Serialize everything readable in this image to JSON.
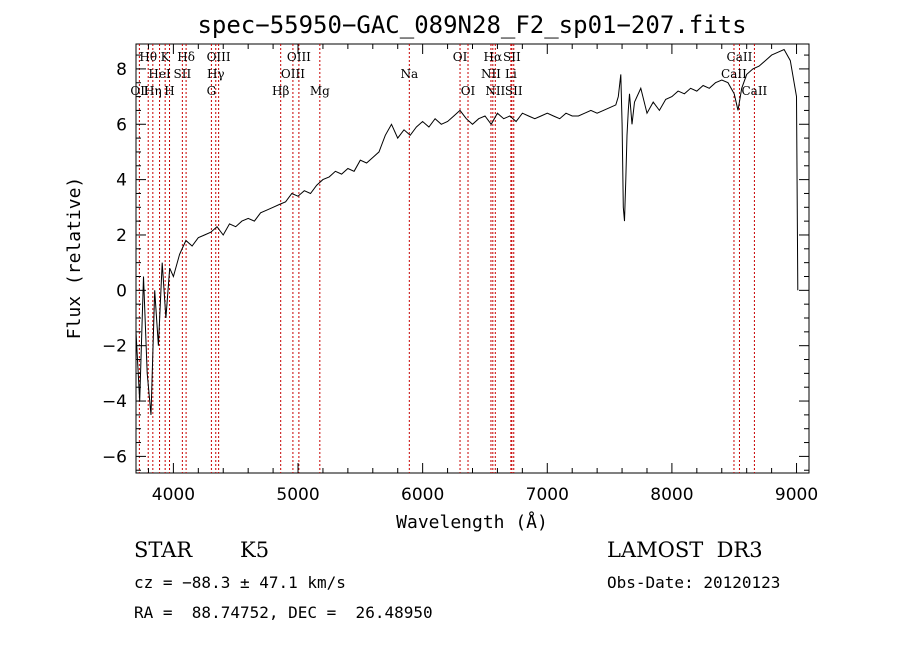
{
  "chart_data": {
    "type": "line",
    "title": "spec−55950−GAC_089N28_F2_sp01−207.fits",
    "xlabel": "Wavelength (Å)",
    "ylabel": "Flux (relative)",
    "xlim": [
      3700,
      9100
    ],
    "ylim": [
      -6.6,
      8.9
    ],
    "xticks": [
      4000,
      5000,
      6000,
      7000,
      8000,
      9000
    ],
    "xtick_labels": [
      "4000",
      "5000",
      "6000",
      "7000",
      "8000",
      "9000"
    ],
    "yticks": [
      -6,
      -4,
      -2,
      0,
      2,
      4,
      6,
      8
    ],
    "ytick_labels": [
      "−6",
      "−4",
      "−2",
      "0",
      "2",
      "4",
      "6",
      "8"
    ],
    "x_minor_step": 200,
    "y_minor_step": 0.5,
    "grid": false,
    "series": [
      {
        "name": "flux",
        "color": "#000000",
        "x": [
          3700,
          3730,
          3760,
          3790,
          3820,
          3850,
          3880,
          3910,
          3940,
          3970,
          4000,
          4050,
          4100,
          4150,
          4200,
          4250,
          4300,
          4350,
          4400,
          4450,
          4500,
          4550,
          4600,
          4650,
          4700,
          4750,
          4800,
          4850,
          4900,
          4950,
          5000,
          5050,
          5100,
          5150,
          5200,
          5250,
          5300,
          5350,
          5400,
          5450,
          5500,
          5550,
          5600,
          5650,
          5700,
          5750,
          5800,
          5850,
          5900,
          5950,
          6000,
          6050,
          6100,
          6150,
          6200,
          6250,
          6300,
          6350,
          6400,
          6450,
          6500,
          6550,
          6600,
          6650,
          6700,
          6750,
          6800,
          6850,
          6900,
          6950,
          7000,
          7050,
          7100,
          7150,
          7200,
          7250,
          7300,
          7350,
          7400,
          7450,
          7500,
          7550,
          7570,
          7590,
          7600,
          7610,
          7620,
          7630,
          7640,
          7650,
          7660,
          7680,
          7700,
          7750,
          7800,
          7850,
          7900,
          7950,
          8000,
          8050,
          8100,
          8150,
          8200,
          8250,
          8300,
          8350,
          8400,
          8450,
          8500,
          8530,
          8560,
          8600,
          8650,
          8700,
          8750,
          8800,
          8850,
          8900,
          8950,
          9000,
          9010
        ],
        "y": [
          -1.5,
          -4.0,
          0.5,
          -3.0,
          -4.5,
          0.0,
          -2.0,
          1.0,
          -1.0,
          0.8,
          0.5,
          1.3,
          1.8,
          1.6,
          1.9,
          2.0,
          2.1,
          2.3,
          2.0,
          2.4,
          2.3,
          2.5,
          2.6,
          2.5,
          2.8,
          2.9,
          3.0,
          3.1,
          3.2,
          3.5,
          3.4,
          3.6,
          3.5,
          3.8,
          4.0,
          4.1,
          4.3,
          4.2,
          4.4,
          4.3,
          4.7,
          4.6,
          4.8,
          5.0,
          5.6,
          6.0,
          5.5,
          5.8,
          5.6,
          5.9,
          6.1,
          5.9,
          6.2,
          6.0,
          6.1,
          6.3,
          6.5,
          6.2,
          6.0,
          6.2,
          6.3,
          6.0,
          6.4,
          6.2,
          6.3,
          6.1,
          6.4,
          6.3,
          6.2,
          6.3,
          6.4,
          6.3,
          6.2,
          6.4,
          6.3,
          6.3,
          6.4,
          6.5,
          6.4,
          6.5,
          6.6,
          6.7,
          7.0,
          7.8,
          6.0,
          3.0,
          2.5,
          4.0,
          5.6,
          6.5,
          7.1,
          6.0,
          6.8,
          7.3,
          6.4,
          6.8,
          6.5,
          6.9,
          7.0,
          7.2,
          7.1,
          7.3,
          7.2,
          7.4,
          7.3,
          7.5,
          7.6,
          7.5,
          7.1,
          6.5,
          7.3,
          7.8,
          8.0,
          8.1,
          8.3,
          8.5,
          8.6,
          8.7,
          8.3,
          7.0,
          0.0
        ]
      }
    ],
    "lines": [
      {
        "label": "OⅡ",
        "x": 3727,
        "row": 3
      },
      {
        "label": "Hθ",
        "x": 3798,
        "row": 1
      },
      {
        "label": "Hη",
        "x": 3835,
        "row": 3
      },
      {
        "label": "K",
        "x": 3934,
        "row": 1
      },
      {
        "label": "HeI",
        "x": 3889,
        "row": 2
      },
      {
        "label": "SII",
        "x": 4072,
        "row": 2
      },
      {
        "label": "H",
        "x": 3969,
        "row": 3
      },
      {
        "label": "Hδ",
        "x": 4102,
        "row": 1
      },
      {
        "label": "OIII",
        "x": 4363,
        "row": 1
      },
      {
        "label": "Hγ",
        "x": 4340,
        "row": 2
      },
      {
        "label": "G",
        "x": 4305,
        "row": 3
      },
      {
        "label": "Hβ",
        "x": 4861,
        "row": 3
      },
      {
        "label": "OIII",
        "x": 5007,
        "row": 1
      },
      {
        "label": "OIII",
        "x": 4959,
        "row": 2
      },
      {
        "label": "Mg",
        "x": 5175,
        "row": 3
      },
      {
        "label": "Na",
        "x": 5893,
        "row": 2
      },
      {
        "label": "OI",
        "x": 6300,
        "row": 1
      },
      {
        "label": "OI",
        "x": 6364,
        "row": 3
      },
      {
        "label": "Hα",
        "x": 6563,
        "row": 1
      },
      {
        "label": "NII",
        "x": 6548,
        "row": 2
      },
      {
        "label": "NII",
        "x": 6583,
        "row": 3
      },
      {
        "label": "SII",
        "x": 6716,
        "row": 1
      },
      {
        "label": "Li",
        "x": 6708,
        "row": 2
      },
      {
        "label": "SII",
        "x": 6731,
        "row": 3
      },
      {
        "label": "CaII",
        "x": 8542,
        "row": 1
      },
      {
        "label": "CaII",
        "x": 8498,
        "row": 2
      },
      {
        "label": "CaII",
        "x": 8662,
        "row": 3
      }
    ]
  },
  "info": {
    "object_type": "STAR",
    "subclass": "K5",
    "survey": "LAMOST  DR3",
    "cz": "cz = −88.3 ± 47.1 km/s",
    "obs_date": "Obs-Date: 20120123",
    "coords": "RA =  88.74752, DEC =  26.48950"
  }
}
